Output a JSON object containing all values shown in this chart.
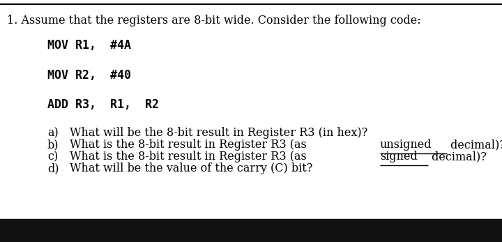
{
  "bg_color": "#ffffff",
  "bottom_bar_color": "#111111",
  "fig_width": 7.2,
  "fig_height": 3.47,
  "dpi": 100,
  "header": "1. Assume that the registers are 8-bit wide. Consider the following code:",
  "code_lines": [
    "MOV R1,  #4A",
    "MOV R2,  #40",
    "ADD R3,  R1,  R2"
  ],
  "questions": [
    {
      "label": "a)",
      "text_before": "What will be the 8-bit result in Register R3 (in hex)?",
      "underline": "",
      "text_after": ""
    },
    {
      "label": "b)",
      "text_before": "What is the 8-bit result in Register R3 (as ",
      "underline": "unsigned",
      "text_after": " decimal)?"
    },
    {
      "label": "c)",
      "text_before": "What is the 8-bit result in Register R3 (as ",
      "underline": "signed",
      "text_after": " decimal)?"
    },
    {
      "label": "d)",
      "text_before": "What will be the value of the carry (C) bit?",
      "underline": "",
      "text_after": ""
    }
  ],
  "header_fontsize": 11.5,
  "code_fontsize": 12,
  "question_fontsize": 11.5,
  "text_color": "#000000"
}
